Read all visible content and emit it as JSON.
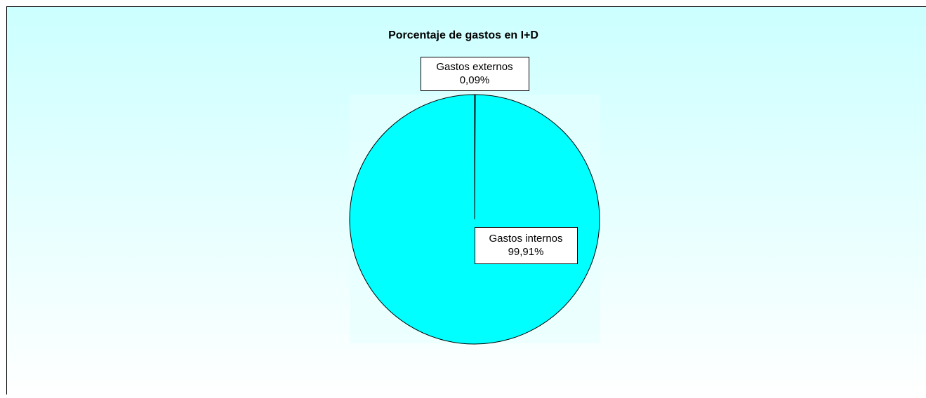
{
  "chart_data": {
    "type": "pie",
    "title": "Porcentaje de gastos en I+D",
    "categories": [
      "Gastos externos",
      "Gastos internos"
    ],
    "values": [
      0.09,
      99.91
    ],
    "value_labels": [
      "0,09%",
      "99,91%"
    ],
    "colors": [
      "#000080",
      "#00ffff"
    ]
  }
}
